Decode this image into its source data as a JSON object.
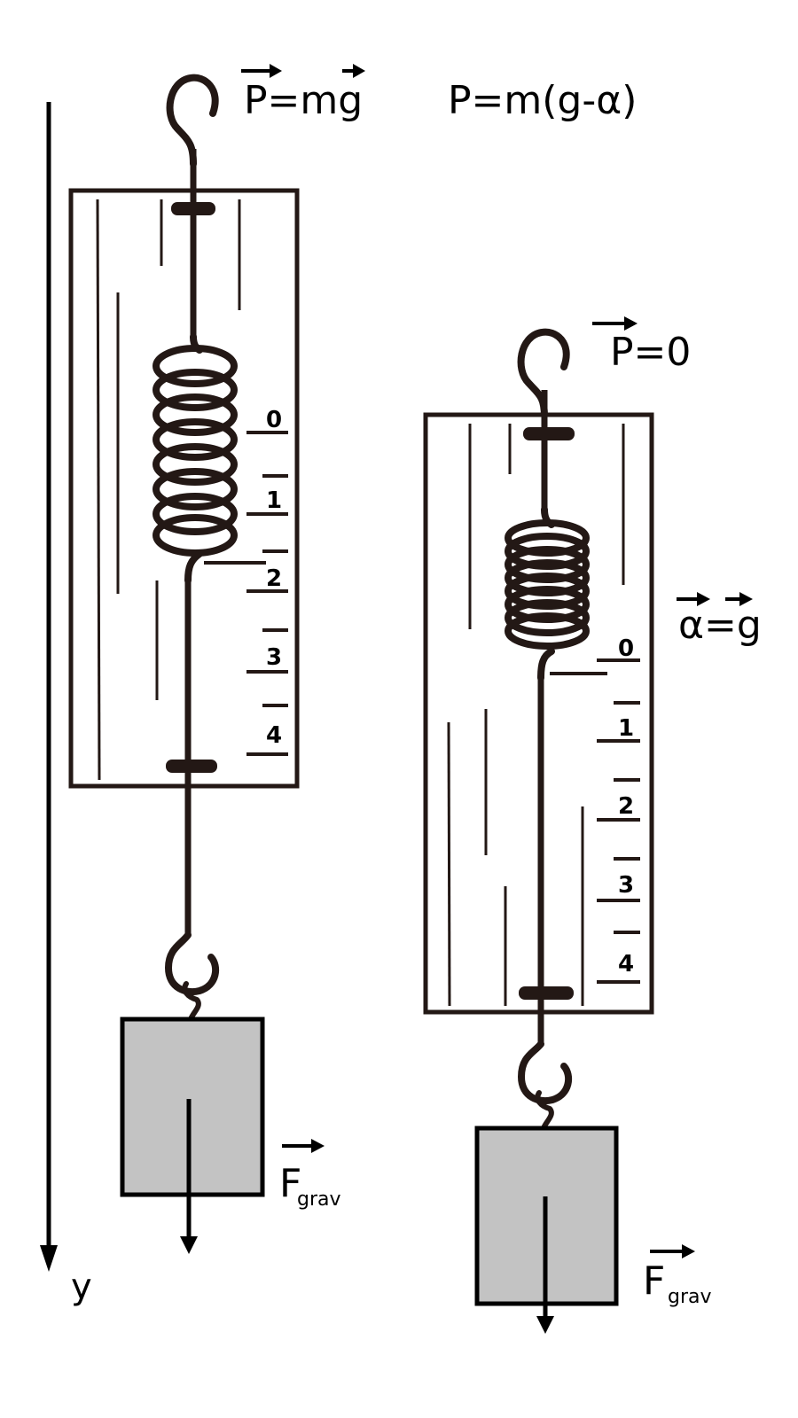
{
  "axis": {
    "label": "y"
  },
  "left_scale": {
    "formula_vec_part1": "P",
    "formula_vec_part2": "=m",
    "formula_vec_part3": "g",
    "formula_scalar": "P=m(g-α)",
    "ticks": [
      "0",
      "1",
      "2",
      "3",
      "4"
    ],
    "force_main": "F",
    "force_sub": "grav"
  },
  "right_scale": {
    "weight_p": "P",
    "weight_eq": "=0",
    "accel_a": "α",
    "accel_eq": "=",
    "accel_g": "g",
    "ticks": [
      "0",
      "1",
      "2",
      "3",
      "4"
    ],
    "force_main": "F",
    "force_sub": "grav"
  },
  "colors": {
    "ink": "#231815",
    "weight_fill": "#c3c3c3",
    "frame_fill": "#ffffff"
  }
}
